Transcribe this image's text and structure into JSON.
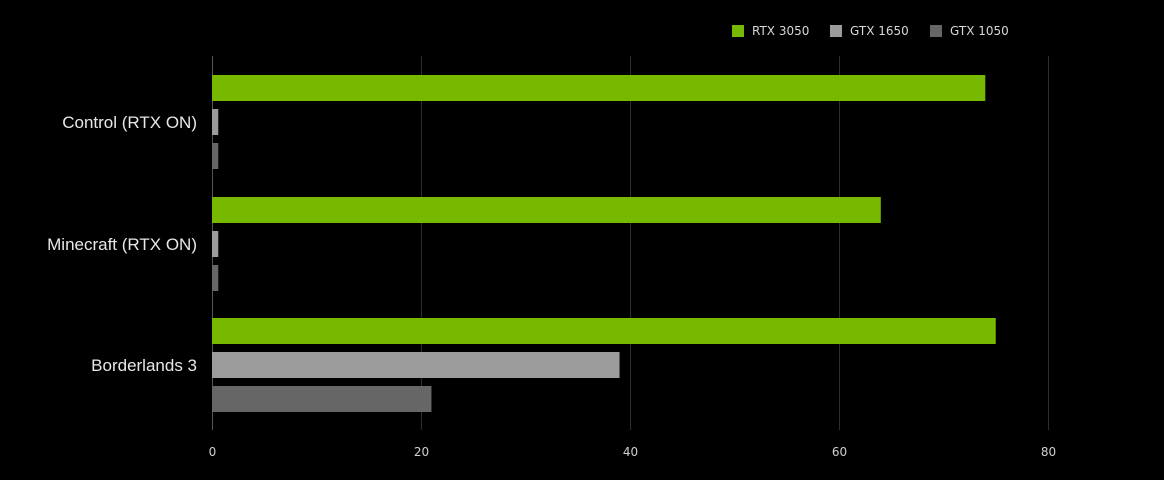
{
  "chart_data": {
    "type": "bar",
    "orientation": "horizontal",
    "categories": [
      "Control (RTX ON)",
      "Minecraft (RTX ON)",
      "Borderlands 3"
    ],
    "series": [
      {
        "name": "RTX 3050",
        "color": "#76b900",
        "values": [
          74,
          64,
          75
        ]
      },
      {
        "name": "GTX 1650",
        "color": "#9b9b9b",
        "values": [
          0.6,
          0.6,
          39
        ]
      },
      {
        "name": "GTX 1050",
        "color": "#666666",
        "values": [
          0.6,
          0.6,
          21
        ]
      }
    ],
    "xlim": [
      0,
      80
    ],
    "xticks": [
      0,
      20,
      40,
      60,
      80
    ],
    "grid": true,
    "legend_position": "top-right",
    "title": "",
    "xlabel": "",
    "ylabel": ""
  }
}
